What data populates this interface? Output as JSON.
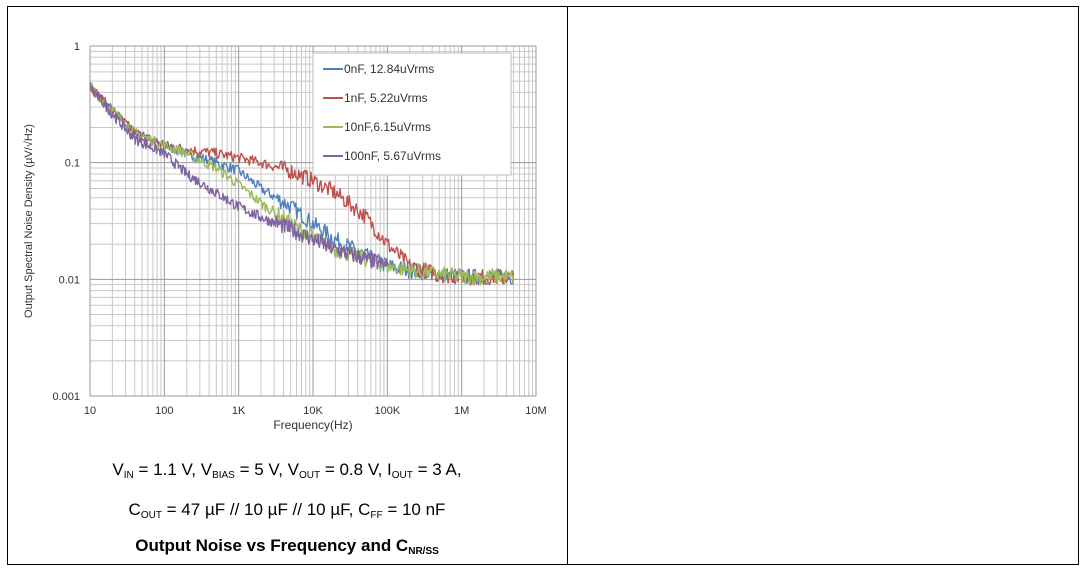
{
  "chart_data": {
    "type": "line",
    "xscale": "log",
    "yscale": "log",
    "xlim": [
      10,
      10000000
    ],
    "ylim": [
      0.001,
      1
    ],
    "xlabel": "Frequency(Hz)",
    "ylabel": "Output Spectral Noise Density (µV/√Hz)",
    "x_ticks": [
      {
        "value": 10,
        "label": "10"
      },
      {
        "value": 100,
        "label": "100"
      },
      {
        "value": 1000,
        "label": "1K"
      },
      {
        "value": 10000,
        "label": "10K"
      },
      {
        "value": 100000,
        "label": "100K"
      },
      {
        "value": 1000000,
        "label": "1M"
      },
      {
        "value": 10000000,
        "label": "10M"
      }
    ],
    "y_ticks": [
      {
        "value": 1,
        "label": "1"
      },
      {
        "value": 0.1,
        "label": "0.1"
      },
      {
        "value": 0.01,
        "label": "0.01"
      },
      {
        "value": 0.001,
        "label": "0.001"
      }
    ],
    "grid": true,
    "legend_position": "top-right",
    "series": [
      {
        "name": "0nF, 12.84uVrms",
        "color": "#4f81bd",
        "x": [
          10,
          20,
          40,
          100,
          200,
          500,
          1000,
          2000,
          5000,
          10000,
          20000,
          50000,
          100000,
          200000,
          500000,
          1000000,
          2000000,
          5000000
        ],
        "y": [
          0.45,
          0.28,
          0.18,
          0.14,
          0.12,
          0.1,
          0.085,
          0.06,
          0.042,
          0.03,
          0.022,
          0.016,
          0.013,
          0.012,
          0.011,
          0.0105,
          0.0105,
          0.0105
        ]
      },
      {
        "name": "1nF, 5.22uVrms",
        "color": "#c0504d",
        "x": [
          10,
          20,
          40,
          100,
          200,
          500,
          1000,
          2000,
          5000,
          10000,
          20000,
          50000,
          100000,
          200000,
          500000,
          1000000,
          2000000,
          5000000
        ],
        "y": [
          0.45,
          0.28,
          0.18,
          0.14,
          0.13,
          0.12,
          0.11,
          0.1,
          0.085,
          0.07,
          0.055,
          0.035,
          0.02,
          0.013,
          0.011,
          0.0105,
          0.0105,
          0.0105
        ]
      },
      {
        "name": "10nF,6.15uVrms",
        "color": "#9bbb59",
        "x": [
          10,
          20,
          40,
          100,
          200,
          500,
          1000,
          2000,
          5000,
          10000,
          20000,
          50000,
          100000,
          200000,
          500000,
          1000000,
          2000000,
          5000000
        ],
        "y": [
          0.45,
          0.28,
          0.18,
          0.14,
          0.12,
          0.09,
          0.065,
          0.045,
          0.03,
          0.023,
          0.018,
          0.015,
          0.013,
          0.012,
          0.011,
          0.0105,
          0.0105,
          0.0105
        ]
      },
      {
        "name": "100nF, 5.67uVrms",
        "color": "#8064a2",
        "x": [
          10,
          20,
          40,
          100,
          200,
          500,
          1000,
          2000,
          5000,
          10000,
          20000,
          50000,
          100000
        ],
        "y": [
          0.45,
          0.26,
          0.16,
          0.12,
          0.08,
          0.055,
          0.042,
          0.034,
          0.027,
          0.022,
          0.018,
          0.015,
          0.013
        ]
      }
    ]
  }
}
